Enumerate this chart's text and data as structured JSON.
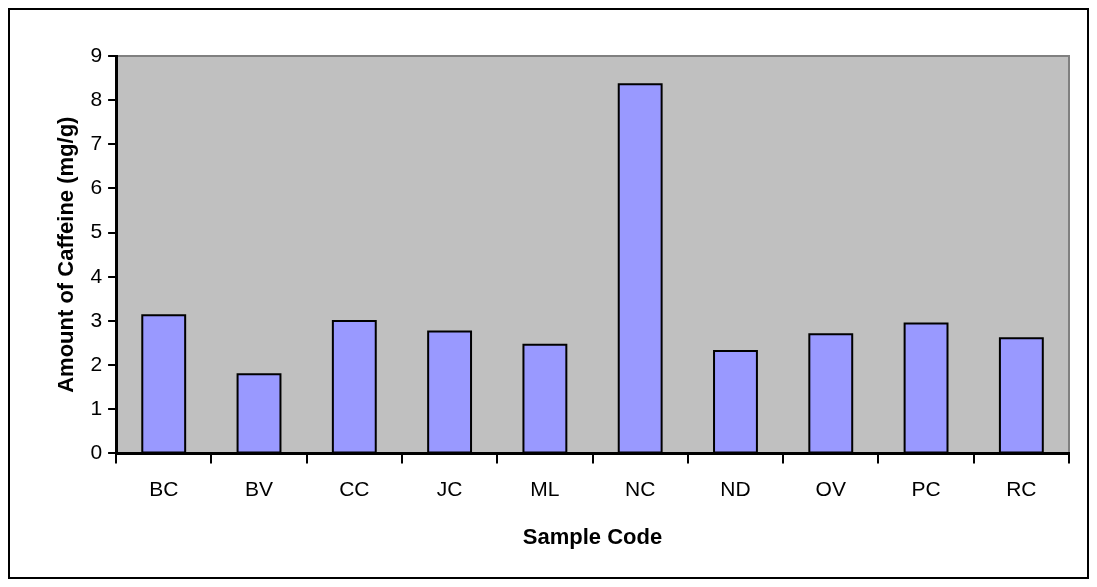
{
  "chart_data": {
    "type": "bar",
    "xlabel": "Sample Code",
    "ylabel": "Amount of Caffeine (mg/g)",
    "categories": [
      "BC",
      "BV",
      "CC",
      "JC",
      "ML",
      "NC",
      "ND",
      "OV",
      "PC",
      "RC"
    ],
    "values": [
      3.13,
      1.79,
      3.0,
      2.76,
      2.46,
      8.36,
      2.32,
      2.7,
      2.94,
      2.61
    ],
    "color": "#9999ff",
    "ylim": [
      0,
      9
    ],
    "yticks": [
      0,
      1,
      2,
      3,
      4,
      5,
      6,
      7,
      8,
      9
    ],
    "grid": false,
    "legend": false
  }
}
